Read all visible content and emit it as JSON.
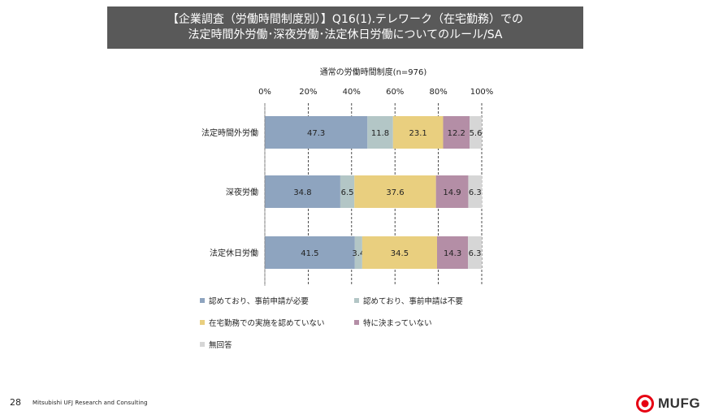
{
  "title": {
    "line1": "【企業調査（労働時間制度別）】Q16(1).テレワーク（在宅勤務）での",
    "line2": "法定時間外労働･深夜労働･法定休日労働についてのルール/SA"
  },
  "chart_data": {
    "type": "bar",
    "orientation": "horizontal",
    "stacked": true,
    "subtitle": "通常の労働時間制度(n=976)",
    "xlim": [
      0,
      100
    ],
    "x_ticks": [
      "0%",
      "20%",
      "40%",
      "60%",
      "80%",
      "100%"
    ],
    "grid": true,
    "legend_position": "bottom",
    "categories": [
      "法定時間外労働",
      "深夜労働",
      "法定休日労働"
    ],
    "series": [
      {
        "name": "認めており、事前申請が必要",
        "color": "#8ea4bf",
        "values": [
          47.3,
          34.8,
          41.5
        ]
      },
      {
        "name": "認めており、事前申請は不要",
        "color": "#b3c6c6",
        "values": [
          11.8,
          6.5,
          3.4
        ]
      },
      {
        "name": "在宅勤務での実施を認めていない",
        "color": "#e9cf7f",
        "values": [
          23.1,
          37.6,
          34.5
        ]
      },
      {
        "name": "特に決まっていない",
        "color": "#b48ea6",
        "values": [
          12.2,
          14.9,
          14.3
        ]
      },
      {
        "name": "無回答",
        "color": "#d6d6d6",
        "values": [
          5.6,
          6.3,
          6.3
        ]
      }
    ]
  },
  "footer": {
    "page_number": "28",
    "company": "Mitsubishi UFJ Research and Consulting",
    "logo_text": "MUFG",
    "logo_color": "#e60012"
  }
}
